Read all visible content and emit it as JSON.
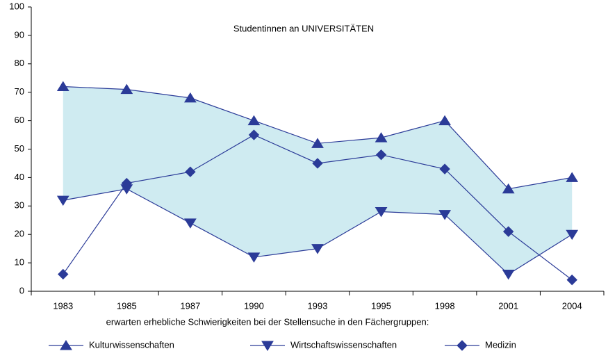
{
  "chart_data": {
    "type": "line",
    "title": "Studentinnen an UNIVERSITÄTEN",
    "x_label": "erwarten erhebliche Schwierigkeiten bei der Stellensuche in den Fächergruppen:",
    "categories": [
      "1983",
      "1985",
      "1987",
      "1990",
      "1993",
      "1995",
      "1998",
      "2001",
      "2004"
    ],
    "series": [
      {
        "name": "Kulturwissenschaften",
        "color": "#2b3b98",
        "marker": "triangle-up",
        "values": [
          72,
          71,
          68,
          60,
          52,
          54,
          60,
          36,
          40
        ]
      },
      {
        "name": "Wirtschaftswissenschaften",
        "color": "#2b3b98",
        "marker": "triangle-down",
        "values": [
          32,
          36,
          24,
          12,
          15,
          28,
          27,
          6,
          20
        ]
      },
      {
        "name": "Medizin",
        "color": "#2b3b98",
        "marker": "diamond",
        "values": [
          6,
          38,
          42,
          55,
          45,
          48,
          43,
          21,
          4
        ]
      }
    ],
    "area_color": "#cfebf1",
    "ylim": [
      0,
      100
    ],
    "yticks": [
      0,
      10,
      20,
      30,
      40,
      50,
      60,
      70,
      80,
      90,
      100
    ],
    "legend": "bottom"
  }
}
